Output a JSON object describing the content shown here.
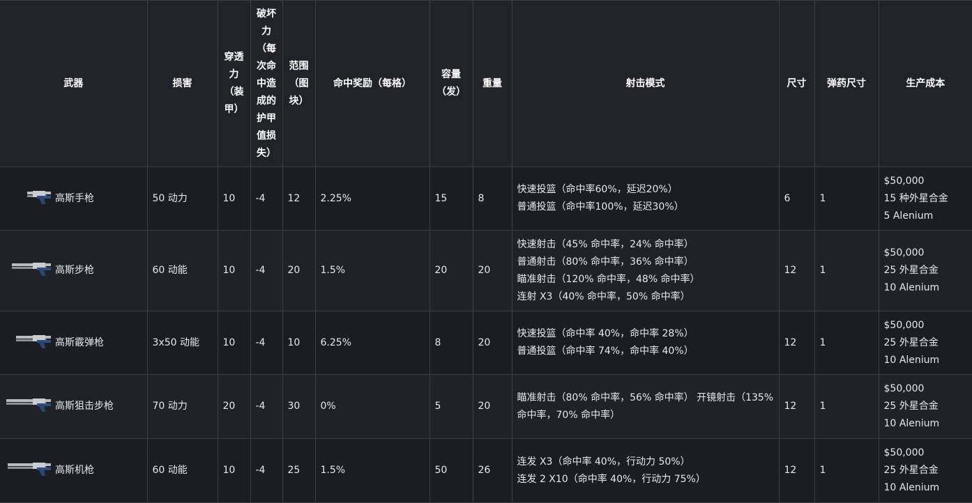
{
  "headers": [
    "武器",
    "损害",
    "穿透力（装甲）",
    "破坏力（每次命中造成的护甲值损失）",
    "范围（图块）",
    "命中奖励（每格）",
    "容量（发）",
    "重量",
    "射击模式",
    "尺寸",
    "弹药尺寸",
    "生产成本"
  ],
  "rows": [
    {
      "icon": "gauss-pistol-icon",
      "name": "高斯手枪",
      "damage": "50 动力",
      "penetration": "10",
      "destruction": "-4",
      "range": "12",
      "hit_bonus": "2.25%",
      "capacity": "15",
      "weight": "8",
      "fire_modes": [
        "快速投篮（命中率60%，延迟20%）",
        "普通投篮（命中率100%，延迟30%）"
      ],
      "size": "6",
      "ammo_size": "1",
      "cost": [
        "$50,000",
        "15 种外星合金",
        "5 Alenium"
      ]
    },
    {
      "icon": "gauss-rifle-icon",
      "name": "高斯步枪",
      "damage": "60 动能",
      "penetration": "10",
      "destruction": "-4",
      "range": "20",
      "hit_bonus": "1.5%",
      "capacity": "20",
      "weight": "20",
      "fire_modes": [
        "快速射击（45% 命中率，24% 命中率）",
        "普通射击（80% 命中率，36% 命中率）",
        "瞄准射击（120% 命中率，48% 命中率）",
        "连射 X3（40% 命中率，50% 命中率）"
      ],
      "size": "12",
      "ammo_size": "1",
      "cost": [
        "$50,000",
        "25 外星合金",
        "10 Alenium"
      ]
    },
    {
      "icon": "gauss-shotgun-icon",
      "name": "高斯霰弹枪",
      "damage": "3x50 动能",
      "penetration": "10",
      "destruction": "-4",
      "range": "10",
      "hit_bonus": "6.25%",
      "capacity": "8",
      "weight": "20",
      "fire_modes": [
        "快速投篮（命中率 40%，命中率 28%）",
        "普通投篮（命中率 74%，命中率 40%）"
      ],
      "size": "12",
      "ammo_size": "1",
      "cost": [
        "$50,000",
        "25 外星合金",
        "10 Alenium"
      ]
    },
    {
      "icon": "gauss-sniper-rifle-icon",
      "name": "高斯狙击步枪",
      "damage": "70 动力",
      "penetration": "20",
      "destruction": "-4",
      "range": "30",
      "hit_bonus": "0%",
      "capacity": "5",
      "weight": "20",
      "fire_modes": [
        "瞄准射击（80% 命中率，56% 命中率） 开镜射击（135% 命中率，70% 命中率）"
      ],
      "size": "12",
      "ammo_size": "1",
      "cost": [
        "$50,000",
        "25 外星合金",
        "10 Alenium"
      ]
    },
    {
      "icon": "gauss-machine-gun-icon",
      "name": "高斯机枪",
      "damage": "60 动能",
      "penetration": "10",
      "destruction": "-4",
      "range": "25",
      "hit_bonus": "1.5%",
      "capacity": "50",
      "weight": "26",
      "fire_modes": [
        "连发 X3（命中率 40%，行动力 50%）",
        "连发 2 X10（命中率 40%，行动力 75%）"
      ],
      "size": "12",
      "ammo_size": "1",
      "cost": [
        "$50,000",
        "25 外星合金",
        "10 Alenium"
      ]
    }
  ]
}
